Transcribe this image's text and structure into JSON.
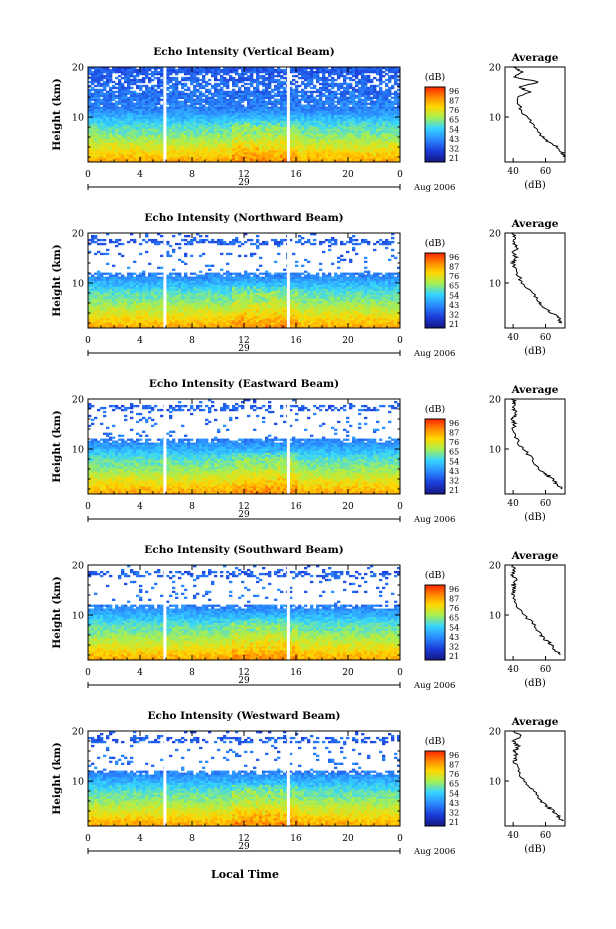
{
  "figure": {
    "date_label": "Aug 2006",
    "xlabel": "Local Time",
    "colorbar_unit": "(dB)",
    "colorbar_ticks": [
      "96",
      "87",
      "76",
      "65",
      "54",
      "43",
      "32",
      "21"
    ],
    "colorbar_colors": [
      "#ff2a00",
      "#ff8a00",
      "#ffd800",
      "#a8f050",
      "#36d6ff",
      "#2b8cff",
      "#1b3bd8",
      "#151a88"
    ],
    "avg_title": "Average",
    "avg_xlabel": "(dB)",
    "avg_xticks": [
      "40",
      "60"
    ]
  },
  "chart_data": [
    {
      "type": "heatmap",
      "title": "Echo Intensity (Vertical Beam)",
      "ylabel": "Height (km)",
      "x_ticks": [
        "0",
        "4",
        "8",
        "12",
        "16",
        "20",
        "0"
      ],
      "day_label": "29",
      "y_ticks": [
        "20",
        "10"
      ],
      "xlim": [
        0,
        24
      ],
      "ylim": [
        1,
        20
      ],
      "profile": {
        "title": "Average",
        "height_km": [
          2,
          3,
          4,
          5,
          6,
          8,
          10,
          12,
          14,
          15,
          16,
          17,
          18,
          19,
          20
        ],
        "db": [
          72,
          70,
          67,
          62,
          58,
          54,
          48,
          44,
          42,
          50,
          44,
          56,
          41,
          46,
          40
        ]
      }
    },
    {
      "type": "heatmap",
      "title": "Echo Intensity (Northward Beam)",
      "ylabel": "Height (km)",
      "x_ticks": [
        "0",
        "4",
        "8",
        "12",
        "16",
        "20",
        "0"
      ],
      "day_label": "29",
      "y_ticks": [
        "20",
        "10"
      ],
      "xlim": [
        0,
        24
      ],
      "ylim": [
        1,
        20
      ],
      "profile": {
        "title": "Average",
        "height_km": [
          2,
          3,
          4,
          5,
          6,
          8,
          10,
          12,
          14,
          15,
          16,
          17,
          18,
          19,
          20
        ],
        "db": [
          70,
          68,
          64,
          60,
          56,
          52,
          46,
          42,
          40,
          42,
          40,
          43,
          40,
          41,
          40
        ]
      }
    },
    {
      "type": "heatmap",
      "title": "Echo Intensity (Eastward Beam)",
      "ylabel": "Height (km)",
      "x_ticks": [
        "0",
        "4",
        "8",
        "12",
        "16",
        "20",
        "0"
      ],
      "day_label": "29",
      "y_ticks": [
        "20",
        "10"
      ],
      "xlim": [
        0,
        24
      ],
      "ylim": [
        1,
        20
      ],
      "profile": {
        "title": "Average",
        "height_km": [
          2,
          3,
          4,
          5,
          6,
          8,
          10,
          12,
          14,
          15,
          16,
          17,
          18,
          19,
          20
        ],
        "db": [
          70,
          67,
          64,
          60,
          56,
          52,
          46,
          42,
          40,
          41,
          40,
          42,
          40,
          41,
          40
        ]
      }
    },
    {
      "type": "heatmap",
      "title": "Echo Intensity (Southward Beam)",
      "ylabel": "Height (km)",
      "x_ticks": [
        "0",
        "4",
        "8",
        "12",
        "16",
        "20",
        "0"
      ],
      "day_label": "29",
      "y_ticks": [
        "20",
        "10"
      ],
      "xlim": [
        0,
        24
      ],
      "ylim": [
        1,
        20
      ],
      "profile": {
        "title": "Average",
        "height_km": [
          2,
          3,
          4,
          5,
          6,
          8,
          10,
          12,
          14,
          15,
          16,
          17,
          18,
          19,
          20
        ],
        "db": [
          70,
          66,
          64,
          60,
          57,
          53,
          47,
          42,
          40,
          41,
          40,
          42,
          40,
          41,
          40
        ]
      }
    },
    {
      "type": "heatmap",
      "title": "Echo Intensity (Westward Beam)",
      "ylabel": "Height (km)",
      "x_ticks": [
        "0",
        "4",
        "8",
        "12",
        "16",
        "20",
        "0"
      ],
      "day_label": "29",
      "y_ticks": [
        "20",
        "10"
      ],
      "xlim": [
        0,
        24
      ],
      "ylim": [
        1,
        20
      ],
      "profile": {
        "title": "Average",
        "height_km": [
          2,
          3,
          4,
          5,
          6,
          8,
          10,
          12,
          14,
          15,
          16,
          17,
          18,
          19,
          20
        ],
        "db": [
          70,
          68,
          65,
          61,
          57,
          53,
          47,
          43,
          41,
          42,
          41,
          43,
          40,
          45,
          40
        ]
      }
    }
  ]
}
